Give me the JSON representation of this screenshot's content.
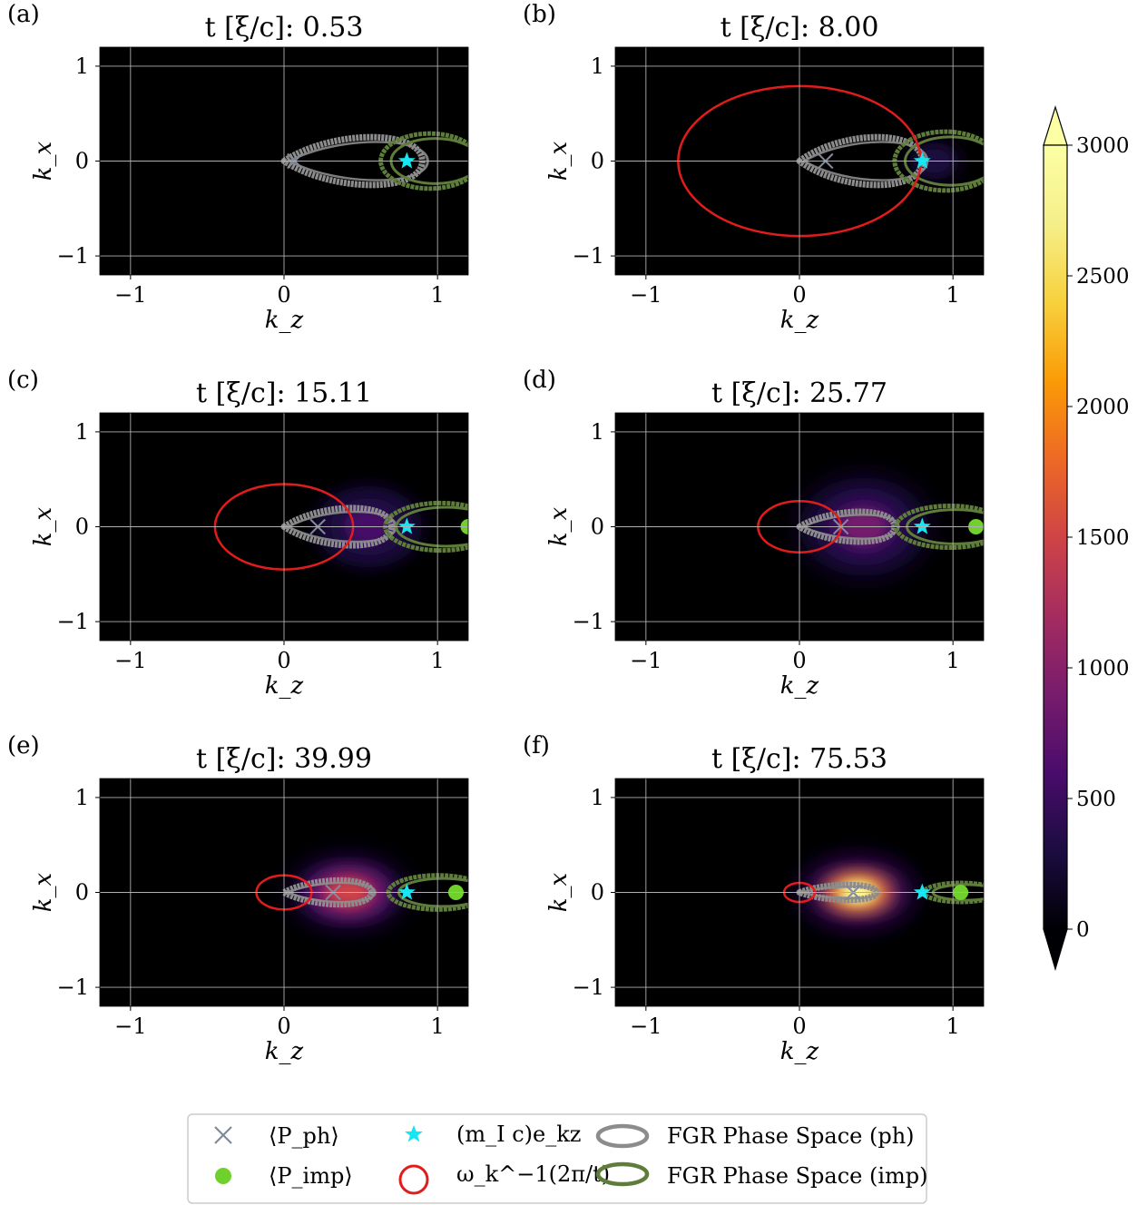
{
  "chart_data": [
    {
      "type": "heatmap",
      "panel": "(a)",
      "title": "t [ξ/c]: 0.53",
      "xlabel": "k_z",
      "ylabel": "k_x",
      "xticks": [
        "−1",
        "0",
        "1"
      ],
      "yticks": [
        "1",
        "0",
        "−1"
      ],
      "xlim": [
        -1.2,
        1.2
      ],
      "ylim": [
        -1.2,
        1.2
      ],
      "grid": true,
      "P_ph": [
        0.07,
        0.0
      ],
      "star": [
        0.8,
        0.0
      ],
      "P_imp": null,
      "red_circle_radius": 0,
      "ph_space": {
        "left": 0.0,
        "right": 0.9,
        "half_height": 0.32
      },
      "imp_space": {
        "center": 0.95,
        "rx": 0.32,
        "ry": 0.29
      },
      "density": {
        "max": 0,
        "center": 0.8,
        "rx": 0.2,
        "ry": 0.2
      }
    },
    {
      "type": "heatmap",
      "panel": "(b)",
      "title": "t [ξ/c]: 8.00",
      "xlabel": "k_z",
      "ylabel": "k_x",
      "xticks": [
        "−1",
        "0",
        "1"
      ],
      "yticks": [
        "1",
        "0",
        "−1"
      ],
      "xlim": [
        -1.2,
        1.2
      ],
      "ylim": [
        -1.2,
        1.2
      ],
      "grid": true,
      "P_ph": [
        0.17,
        0.0
      ],
      "star": [
        0.8,
        0.0
      ],
      "P_imp": null,
      "red_circle_radius": 0.79,
      "ph_space": {
        "left": 0.0,
        "right": 0.8,
        "half_height": 0.32
      },
      "imp_space": {
        "center": 0.95,
        "rx": 0.33,
        "ry": 0.31
      },
      "density": {
        "max": 280,
        "center": 0.88,
        "rx": 0.3,
        "ry": 0.36
      }
    },
    {
      "type": "heatmap",
      "panel": "(c)",
      "title": "t [ξ/c]: 15.11",
      "xlabel": "k_z",
      "ylabel": "k_x",
      "xticks": [
        "−1",
        "0",
        "1"
      ],
      "yticks": [
        "1",
        "0",
        "−1"
      ],
      "xlim": [
        -1.2,
        1.2
      ],
      "ylim": [
        -1.2,
        1.2
      ],
      "grid": true,
      "P_ph": [
        0.22,
        0.0
      ],
      "star": [
        0.8,
        0.0
      ],
      "P_imp": [
        1.2,
        0.0
      ],
      "red_circle_radius": 0.45,
      "ph_space": {
        "left": 0.0,
        "right": 0.7,
        "half_height": 0.25
      },
      "imp_space": {
        "center": 1.02,
        "rx": 0.36,
        "ry": 0.25
      },
      "density": {
        "max": 550,
        "center": 0.55,
        "rx": 0.45,
        "ry": 0.55
      }
    },
    {
      "type": "heatmap",
      "panel": "(d)",
      "title": "t [ξ/c]: 25.77",
      "xlabel": "k_z",
      "ylabel": "k_x",
      "xticks": [
        "−1",
        "0",
        "1"
      ],
      "yticks": [
        "1",
        "0",
        "−1"
      ],
      "xlim": [
        -1.2,
        1.2
      ],
      "ylim": [
        -1.2,
        1.2
      ],
      "grid": true,
      "P_ph": [
        0.27,
        0.0
      ],
      "star": [
        0.8,
        0.0
      ],
      "P_imp": [
        1.15,
        0.0
      ],
      "red_circle_radius": 0.27,
      "ph_space": {
        "left": 0.0,
        "right": 0.62,
        "half_height": 0.2
      },
      "imp_space": {
        "center": 0.98,
        "rx": 0.35,
        "ry": 0.22
      },
      "density": {
        "max": 800,
        "center": 0.42,
        "rx": 0.42,
        "ry": 0.52
      }
    },
    {
      "type": "heatmap",
      "panel": "(e)",
      "title": "t [ξ/c]: 39.99",
      "xlabel": "k_z",
      "ylabel": "k_x",
      "xticks": [
        "−1",
        "0",
        "1"
      ],
      "yticks": [
        "1",
        "0",
        "−1"
      ],
      "xlim": [
        -1.2,
        1.2
      ],
      "ylim": [
        -1.2,
        1.2
      ],
      "grid": true,
      "P_ph": [
        0.32,
        0.0
      ],
      "star": [
        0.8,
        0.0
      ],
      "P_imp": [
        1.12,
        0.0
      ],
      "red_circle_radius": 0.18,
      "ph_space": {
        "left": 0.0,
        "right": 0.57,
        "half_height": 0.16
      },
      "imp_space": {
        "center": 1.0,
        "rx": 0.32,
        "ry": 0.18
      },
      "density": {
        "max": 1500,
        "center": 0.42,
        "rx": 0.38,
        "ry": 0.38
      }
    },
    {
      "type": "heatmap",
      "panel": "(f)",
      "title": "t [ξ/c]: 75.53",
      "xlabel": "k_z",
      "ylabel": "k_x",
      "xticks": [
        "−1",
        "0",
        "1"
      ],
      "yticks": [
        "1",
        "0",
        "−1"
      ],
      "xlim": [
        -1.2,
        1.2
      ],
      "ylim": [
        -1.2,
        1.2
      ],
      "grid": true,
      "P_ph": [
        0.35,
        0.0
      ],
      "star": [
        0.8,
        0.0
      ],
      "P_imp": [
        1.05,
        0.0
      ],
      "red_circle_radius": 0.1,
      "ph_space": {
        "left": 0.0,
        "right": 0.5,
        "half_height": 0.1
      },
      "imp_space": {
        "center": 1.05,
        "rx": 0.24,
        "ry": 0.1
      },
      "density": {
        "max": 3000,
        "center": 0.38,
        "rx": 0.3,
        "ry": 0.28
      }
    }
  ],
  "colorbar": {
    "ticks": [
      "0",
      "500",
      "1000",
      "1500",
      "2000",
      "2500",
      "3000"
    ],
    "values": [
      0,
      500,
      1000,
      1500,
      2000,
      2500,
      3000
    ],
    "range": [
      0,
      3000
    ],
    "colormap": "inferno",
    "extend": "both"
  },
  "legend": {
    "items": [
      {
        "key": "P_ph",
        "label": "⟨P_ph⟩"
      },
      {
        "key": "star",
        "label": "(m_I c)e_kz"
      },
      {
        "key": "ph_space",
        "label": "FGR Phase Space (ph)"
      },
      {
        "key": "P_imp",
        "label": "⟨P_imp⟩"
      },
      {
        "key": "red_circle",
        "label": "ω_k^−1(2π/t)"
      },
      {
        "key": "imp_space",
        "label": "FGR Phase Space (imp)"
      }
    ]
  },
  "colors": {
    "background": "#000000",
    "grid": "#b0b0b0",
    "red_circle": "#e01c1c",
    "ph_space": "#8c8c8c",
    "imp_space": "#5e7c3a",
    "P_ph_marker": "#808a99",
    "star": "#16e6f2",
    "P_imp_marker": "#71d12c"
  }
}
